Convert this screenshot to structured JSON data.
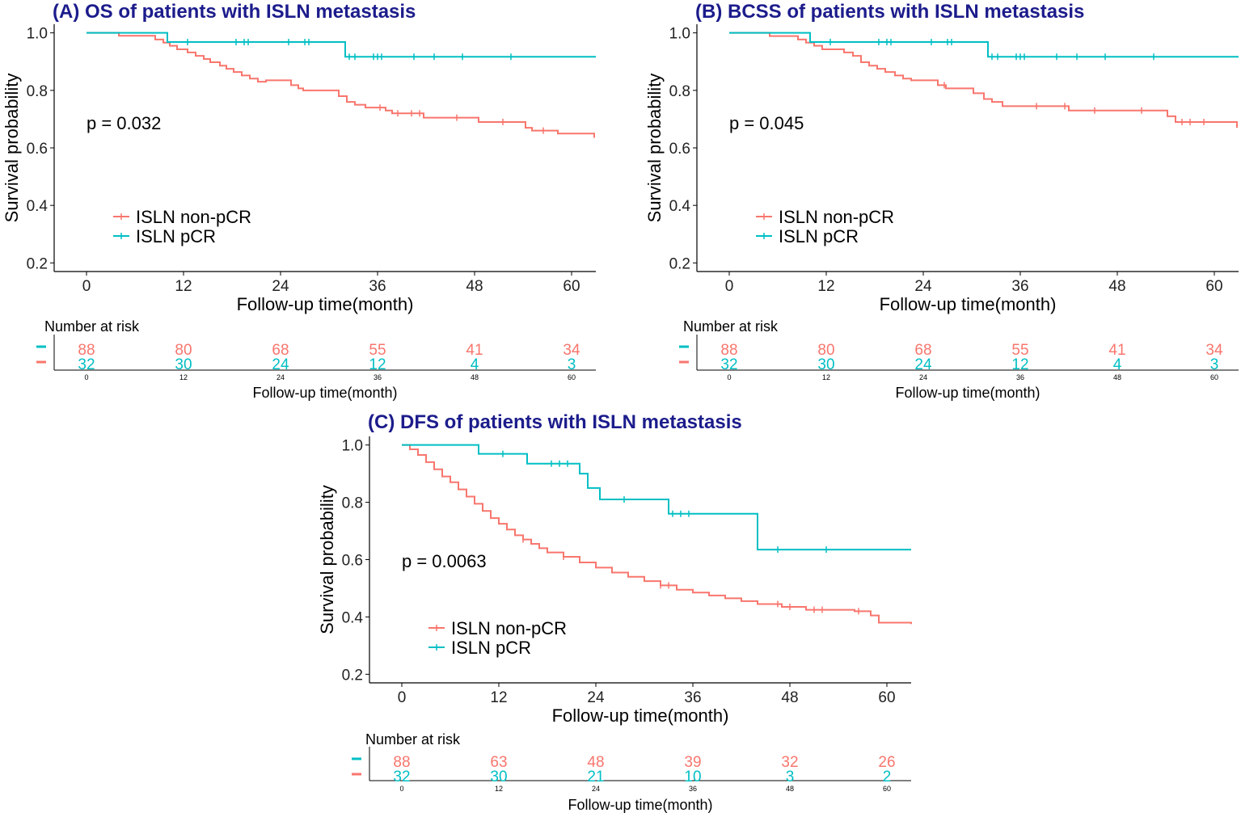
{
  "colors": {
    "non_pcr": "#f8766d",
    "pcr": "#00bfc4",
    "title": "#1c1c8c"
  },
  "chart_data": [
    {
      "type": "line",
      "title": "(A) OS of patients with ISLN metastasis",
      "xlabel": "Follow-up time(month)",
      "ylabel": "Survival probability",
      "p_value": "p = 0.032",
      "xlim": [
        -4,
        63
      ],
      "ylim": [
        0.17,
        1.03
      ],
      "x_ticks": [
        0,
        12,
        24,
        36,
        48,
        60
      ],
      "x_tick_labels": [
        "0",
        "12",
        "24",
        "36",
        "48",
        "60"
      ],
      "y_ticks": [
        0.2,
        0.4,
        0.6,
        0.8,
        1.0
      ],
      "y_tick_labels": [
        "0.2",
        "0.4",
        "0.6",
        "0.8",
        "1.0"
      ],
      "legend": [
        "ISLN non-pCR",
        "ISLN pCR"
      ],
      "series": [
        {
          "name": "ISLN non-pCR",
          "x": [
            0,
            4,
            8.5,
            9.5,
            10.3,
            11.2,
            12.5,
            13.5,
            14.5,
            15.3,
            16.5,
            17.3,
            18.2,
            19.2,
            20.2,
            21.2,
            22.2,
            25.3,
            26.2,
            26.8,
            31.2,
            32.2,
            33.2,
            34.5,
            37.0,
            37.8,
            41.7,
            48.5,
            54.3,
            55.1,
            58.3,
            62.8
          ],
          "y": [
            1.0,
            0.99,
            0.977,
            0.966,
            0.955,
            0.943,
            0.932,
            0.92,
            0.909,
            0.898,
            0.886,
            0.875,
            0.864,
            0.852,
            0.841,
            0.83,
            0.835,
            0.818,
            0.807,
            0.8,
            0.78,
            0.76,
            0.75,
            0.74,
            0.73,
            0.72,
            0.705,
            0.69,
            0.67,
            0.66,
            0.65,
            0.635
          ],
          "censor_x": [
            36.3,
            38.5,
            40.2,
            41.2,
            45.8,
            51.5,
            56.5
          ]
        },
        {
          "name": "ISLN pCR",
          "x": [
            0,
            10,
            32,
            63
          ],
          "y": [
            1.0,
            0.968,
            0.917,
            0.917
          ],
          "censor_x": [
            12.5,
            18.5,
            19.5,
            20,
            25,
            27,
            27.5,
            32.5,
            33.2,
            35.5,
            36,
            36.5,
            40.5,
            43,
            46.5,
            52.5
          ]
        }
      ],
      "risk_table": {
        "title": "Number at risk",
        "xlabel": "Follow-up time(month)",
        "times": [
          "0",
          "12",
          "24",
          "36",
          "48",
          "60"
        ],
        "non_pcr": [
          "88",
          "80",
          "68",
          "55",
          "41",
          "34"
        ],
        "pcr": [
          "32",
          "30",
          "24",
          "12",
          "4",
          "3"
        ]
      }
    },
    {
      "type": "line",
      "title": "(B) BCSS of patients with ISLN metastasis",
      "xlabel": "Follow-up time(month)",
      "ylabel": "Survival probability",
      "p_value": "p = 0.045",
      "xlim": [
        -4,
        63
      ],
      "ylim": [
        0.17,
        1.03
      ],
      "x_ticks": [
        0,
        12,
        24,
        36,
        48,
        60
      ],
      "x_tick_labels": [
        "0",
        "12",
        "24",
        "36",
        "48",
        "60"
      ],
      "y_ticks": [
        0.2,
        0.4,
        0.6,
        0.8,
        1.0
      ],
      "y_tick_labels": [
        "0.2",
        "0.4",
        "0.6",
        "0.8",
        "1.0"
      ],
      "legend": [
        "ISLN non-pCR",
        "ISLN pCR"
      ],
      "series": [
        {
          "name": "ISLN non-pCR",
          "x": [
            0,
            5,
            8.5,
            9.5,
            10.5,
            11.5,
            14.2,
            15.3,
            16.3,
            17.3,
            18.3,
            19.3,
            20.5,
            21.5,
            22.5,
            25.8,
            26.8,
            30.2,
            31.5,
            32.5,
            33.8,
            42,
            54.2,
            55.2,
            62.8
          ],
          "y": [
            1.0,
            0.989,
            0.977,
            0.966,
            0.955,
            0.943,
            0.932,
            0.92,
            0.898,
            0.886,
            0.875,
            0.864,
            0.852,
            0.841,
            0.835,
            0.818,
            0.807,
            0.79,
            0.77,
            0.76,
            0.745,
            0.73,
            0.71,
            0.69,
            0.67
          ],
          "censor_x": [
            26.6,
            38,
            41.5,
            45.2,
            51,
            56,
            57,
            58.7
          ]
        },
        {
          "name": "ISLN pCR",
          "x": [
            0,
            10,
            32,
            63
          ],
          "y": [
            1.0,
            0.968,
            0.917,
            0.917
          ],
          "censor_x": [
            12.5,
            18.5,
            19.5,
            20,
            25,
            27,
            27.5,
            32.5,
            33.2,
            35.5,
            36,
            36.5,
            40.5,
            43,
            46.5,
            52.5
          ]
        }
      ],
      "risk_table": {
        "title": "Number at risk",
        "xlabel": "Follow-up time(month)",
        "times": [
          "0",
          "12",
          "24",
          "36",
          "48",
          "60"
        ],
        "non_pcr": [
          "88",
          "80",
          "68",
          "55",
          "41",
          "34"
        ],
        "pcr": [
          "32",
          "30",
          "24",
          "12",
          "4",
          "3"
        ]
      }
    },
    {
      "type": "line",
      "title": "(C) DFS of patients with ISLN metastasis",
      "xlabel": "Follow-up time(month)",
      "ylabel": "Survival probability",
      "p_value": "p = 0.0063",
      "xlim": [
        -4,
        63
      ],
      "ylim": [
        0.17,
        1.03
      ],
      "x_ticks": [
        0,
        12,
        24,
        36,
        48,
        60
      ],
      "x_tick_labels": [
        "0",
        "12",
        "24",
        "36",
        "48",
        "60"
      ],
      "y_ticks": [
        0.2,
        0.4,
        0.6,
        0.8,
        1.0
      ],
      "y_tick_labels": [
        "0.2",
        "0.4",
        "0.6",
        "0.8",
        "1.0"
      ],
      "legend": [
        "ISLN non-pCR",
        "ISLN pCR"
      ],
      "series": [
        {
          "name": "ISLN non-pCR",
          "x": [
            0,
            1,
            2,
            3,
            4,
            5,
            6,
            7,
            8,
            9,
            10,
            11,
            12,
            13,
            14,
            15,
            16,
            17,
            18,
            20,
            22,
            24,
            26,
            28,
            30,
            32,
            34,
            36,
            38,
            40,
            42,
            44,
            47,
            50,
            56,
            58,
            59,
            63
          ],
          "y": [
            1.0,
            0.985,
            0.965,
            0.94,
            0.915,
            0.89,
            0.87,
            0.845,
            0.82,
            0.795,
            0.77,
            0.745,
            0.725,
            0.705,
            0.685,
            0.67,
            0.655,
            0.64,
            0.625,
            0.61,
            0.59,
            0.572,
            0.555,
            0.54,
            0.525,
            0.51,
            0.495,
            0.485,
            0.475,
            0.465,
            0.455,
            0.445,
            0.435,
            0.425,
            0.42,
            0.405,
            0.38,
            0.375
          ],
          "censor_x": [
            15,
            20,
            32,
            33,
            46.5,
            48,
            51,
            52,
            56.5
          ]
        },
        {
          "name": "ISLN pCR",
          "x": [
            0,
            9.5,
            15.5,
            22,
            23,
            24.5,
            33,
            44,
            63
          ],
          "y": [
            1.0,
            0.969,
            0.935,
            0.9,
            0.85,
            0.81,
            0.76,
            0.635,
            0.635
          ],
          "censor_x": [
            12.5,
            18.5,
            19.5,
            20.5,
            27.5,
            33.5,
            34.5,
            35.5,
            46.5,
            52.5
          ]
        }
      ],
      "risk_table": {
        "title": "Number at risk",
        "xlabel": "Follow-up time(month)",
        "times": [
          "0",
          "12",
          "24",
          "36",
          "48",
          "60"
        ],
        "non_pcr": [
          "88",
          "63",
          "48",
          "39",
          "32",
          "26"
        ],
        "pcr": [
          "32",
          "30",
          "21",
          "10",
          "3",
          "2"
        ]
      }
    }
  ]
}
